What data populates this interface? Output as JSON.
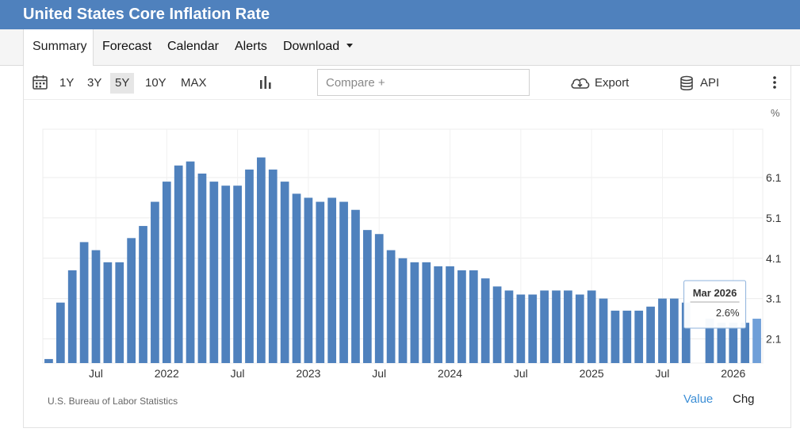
{
  "title": "United States Core Inflation Rate",
  "tabs": [
    {
      "label": "Summary"
    },
    {
      "label": "Forecast"
    },
    {
      "label": "Calendar"
    },
    {
      "label": "Alerts"
    },
    {
      "label": "Download"
    }
  ],
  "toolbar": {
    "ranges": [
      "1Y",
      "3Y",
      "5Y",
      "10Y",
      "MAX"
    ],
    "active_range": "5Y",
    "compare_placeholder": "Compare +",
    "export_label": "Export",
    "api_label": "API"
  },
  "tooltip": {
    "date": "Mar 2026",
    "value": "2.6%"
  },
  "footer": {
    "source": "U.S. Bureau of Labor Statistics",
    "value_label": "Value",
    "chg_label": "Chg"
  },
  "colors": {
    "header_bg": "#4f81bd",
    "bar": "#4f81bd",
    "bar_highlight": "#6f9fd8",
    "link": "#3d8fd6"
  },
  "chart_data": {
    "type": "bar",
    "unit": "%",
    "ylim": [
      1.5,
      7.3
    ],
    "yticks": [
      "6.1",
      "5.1",
      "4.1",
      "3.1",
      "2.1"
    ],
    "grid": true,
    "x_labels": [
      "Jul",
      "2022",
      "Jul",
      "2023",
      "Jul",
      "2024",
      "Jul",
      "2025",
      "Jul",
      "2026"
    ],
    "categories": [
      "Mar 2021",
      "Apr 2021",
      "May 2021",
      "Jun 2021",
      "Jul 2021",
      "Aug 2021",
      "Sep 2021",
      "Oct 2021",
      "Nov 2021",
      "Dec 2021",
      "Jan 2022",
      "Feb 2022",
      "Mar 2022",
      "Apr 2022",
      "May 2022",
      "Jun 2022",
      "Jul 2022",
      "Aug 2022",
      "Sep 2022",
      "Oct 2022",
      "Nov 2022",
      "Dec 2022",
      "Jan 2023",
      "Feb 2023",
      "Mar 2023",
      "Apr 2023",
      "May 2023",
      "Jun 2023",
      "Jul 2023",
      "Aug 2023",
      "Sep 2023",
      "Oct 2023",
      "Nov 2023",
      "Dec 2023",
      "Jan 2024",
      "Feb 2024",
      "Mar 2024",
      "Apr 2024",
      "May 2024",
      "Jun 2024",
      "Jul 2024",
      "Aug 2024",
      "Sep 2024",
      "Oct 2024",
      "Nov 2024",
      "Dec 2024",
      "Jan 2025",
      "Feb 2025",
      "Mar 2025",
      "Apr 2025",
      "May 2025",
      "Jun 2025",
      "Jul 2025",
      "Aug 2025",
      "Sep 2025",
      "Oct 2025",
      "Nov 2025",
      "Dec 2025",
      "Jan 2026",
      "Feb 2026",
      "Mar 2026"
    ],
    "values": [
      1.6,
      3.0,
      3.8,
      4.5,
      4.3,
      4.0,
      4.0,
      4.6,
      4.9,
      5.5,
      6.0,
      6.4,
      6.5,
      6.2,
      6.0,
      5.9,
      5.9,
      6.3,
      6.6,
      6.3,
      6.0,
      5.7,
      5.6,
      5.5,
      5.6,
      5.5,
      5.3,
      4.8,
      4.7,
      4.3,
      4.1,
      4.0,
      4.0,
      3.9,
      3.9,
      3.8,
      3.8,
      3.6,
      3.4,
      3.3,
      3.2,
      3.2,
      3.3,
      3.3,
      3.3,
      3.2,
      3.3,
      3.1,
      2.8,
      2.8,
      2.8,
      2.9,
      3.1,
      3.1,
      3.0,
      null,
      2.6,
      2.5,
      2.5,
      2.5,
      2.6
    ]
  }
}
